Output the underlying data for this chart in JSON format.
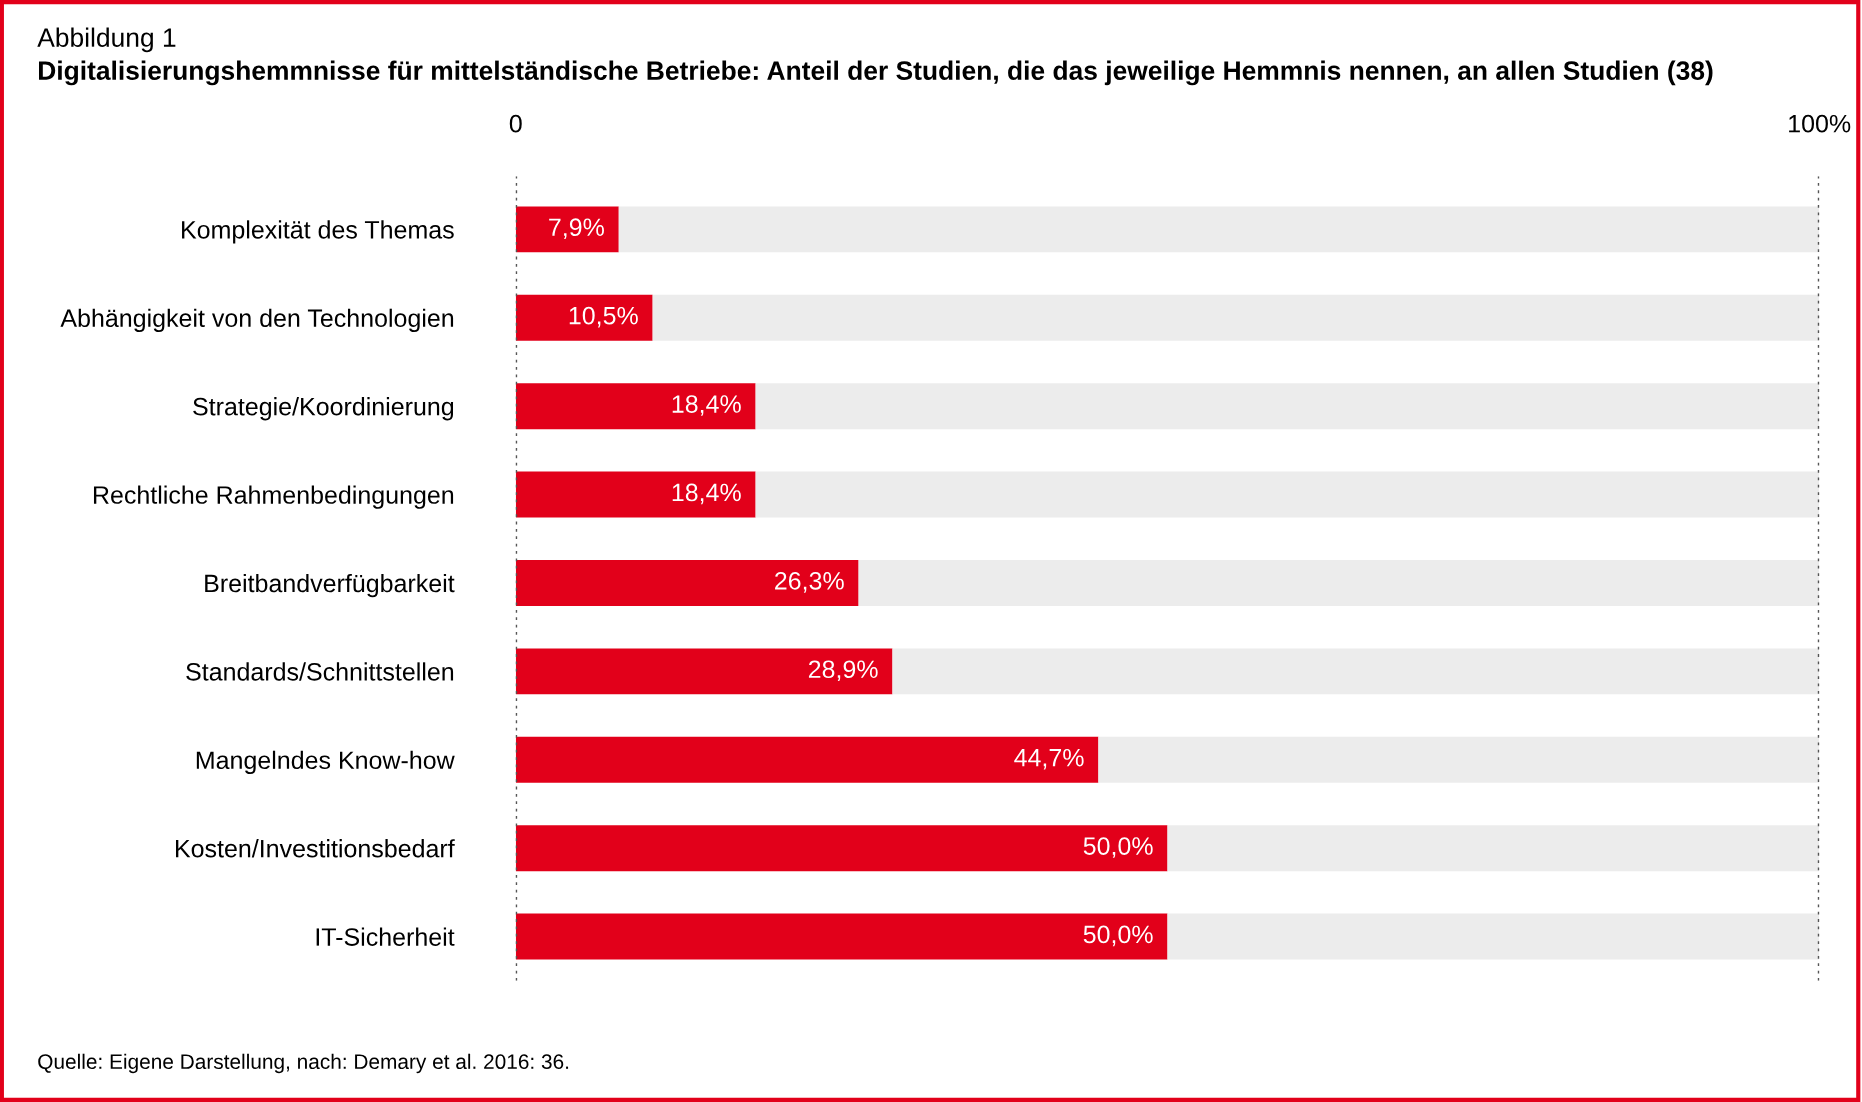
{
  "chart_data": {
    "type": "bar",
    "orientation": "horizontal",
    "stacked": true,
    "title": "Abbildung 1",
    "subtitle": "Digitalisierungshemmnisse für mittelständische Betriebe: Anteil der Studien, die das jeweilige Hemmnis nennen, an allen Studien (38)",
    "categories": [
      "Komplexität des Themas",
      "Abhängigkeit von den Technologien",
      "Strategie/Koordinierung",
      "Rechtliche Rahmenbedingungen",
      "Breitbandverfügbarkeit",
      "Standards/Schnittstellen",
      "Mangelndes Know-how",
      "Kosten/Investitionsbedarf",
      "IT-Sicherheit"
    ],
    "series": [
      {
        "color": "#e2001a",
        "values": [
          7.9,
          10.5,
          18.4,
          18.4,
          26.3,
          28.9,
          44.7,
          50.0,
          50.0
        ],
        "value_labels": [
          "7,9%",
          "10,5%",
          "18,4%",
          "18,4%",
          "26,3%",
          "28,9%",
          "44,7%",
          "50,0%",
          "50,0%"
        ]
      },
      {
        "color": "#ececec",
        "values": [
          92.1,
          89.5,
          81.6,
          81.6,
          73.7,
          71.1,
          55.3,
          50.0,
          50.0
        ]
      }
    ],
    "xlim": [
      0,
      100
    ],
    "xticks": [
      {
        "value": 0,
        "label": "0"
      },
      {
        "value": 100,
        "label": "100%"
      }
    ],
    "grid": "x",
    "legend": false,
    "annotations": [
      "Quelle: Eigene Darstellung, nach: Demary et al. 2016: 36."
    ]
  }
}
